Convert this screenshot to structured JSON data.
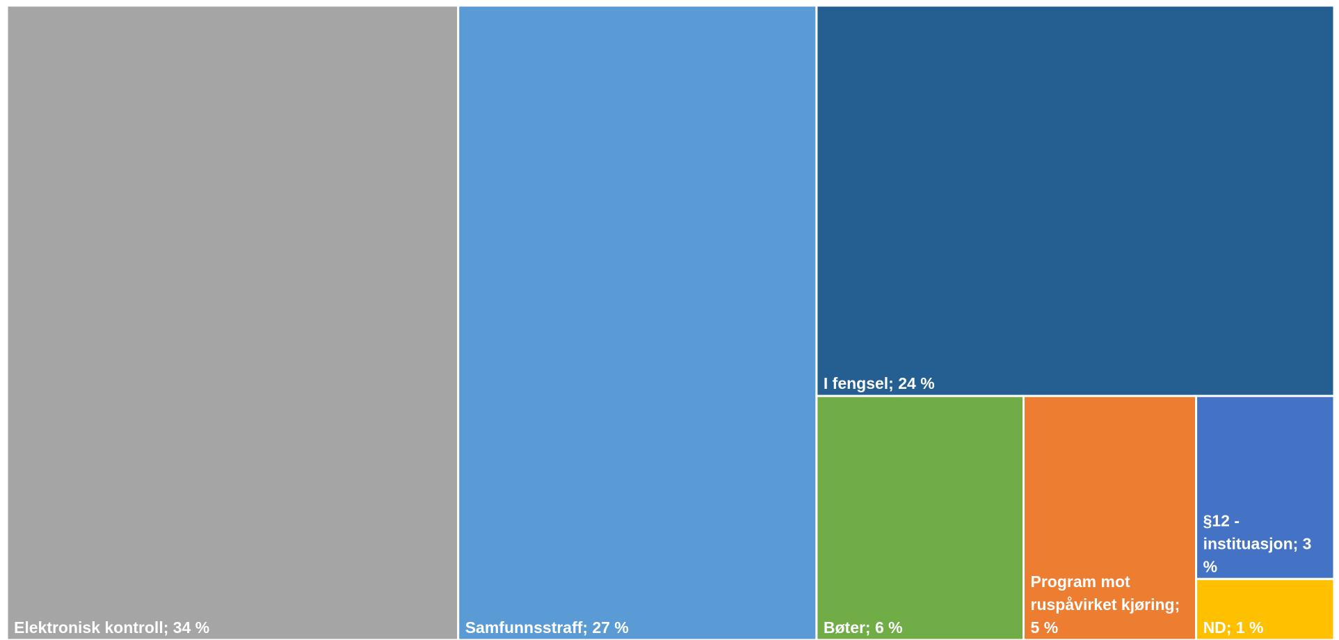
{
  "chart_data": {
    "type": "treemap",
    "labels": [
      "Elektronisk kontroll; 34 %",
      "Samfunnsstraff; 27 %",
      "I fengsel; 24 %",
      "Bøter; 6 %",
      "Program mot ruspåvirket kjøring; 5 %",
      "§12 - instituasjon; 3 %",
      "ND; 1 %"
    ],
    "values": [
      34,
      27,
      24,
      6,
      5,
      3,
      1
    ],
    "colors": [
      "#a5a5a5",
      "#5b9bd5",
      "#255e91",
      "#70ad47",
      "#ed7d31",
      "#4472c4",
      "#ffc000"
    ]
  }
}
